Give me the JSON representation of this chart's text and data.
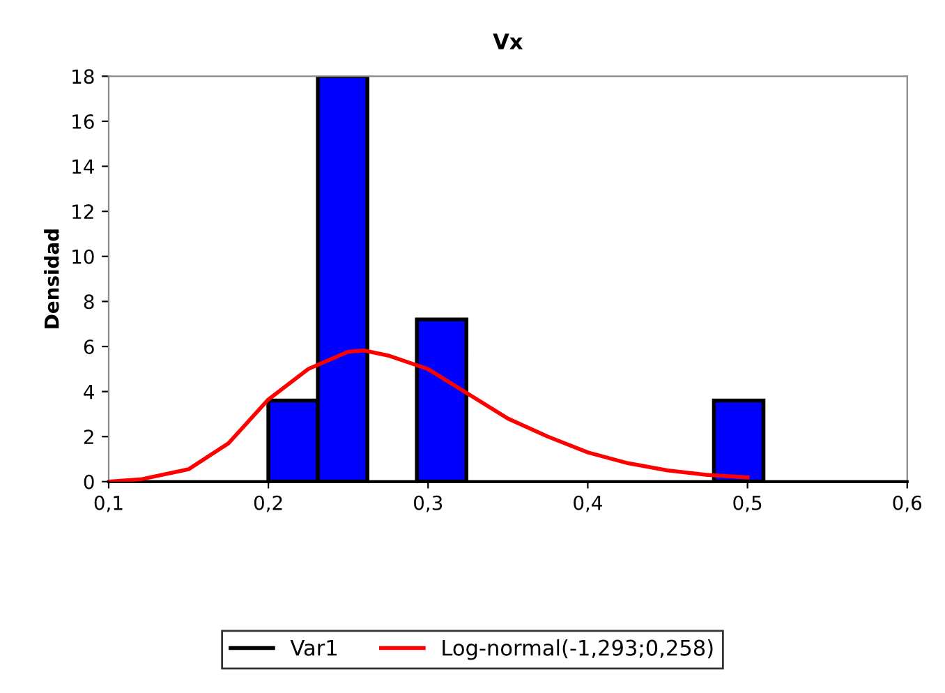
{
  "chart_data": {
    "type": "histogram",
    "title": "Vx",
    "ylabel": "Densidad",
    "xlim": [
      0.1,
      0.6
    ],
    "xticks": [
      {
        "value": 0.1,
        "label": "0,1"
      },
      {
        "value": 0.2,
        "label": "0,2"
      },
      {
        "value": 0.3,
        "label": "0,3"
      },
      {
        "value": 0.4,
        "label": "0,4"
      },
      {
        "value": 0.5,
        "label": "0,5"
      },
      {
        "value": 0.6,
        "label": "0,6"
      }
    ],
    "ylim": [
      0,
      18
    ],
    "yticks": [
      0,
      2,
      4,
      6,
      8,
      10,
      12,
      14,
      16,
      18
    ],
    "grid": false,
    "legend": "bottom",
    "series": [
      {
        "name": "Var1",
        "color": "#0000ff",
        "bins": [
          0.2,
          0.231,
          0.262,
          0.293,
          0.324,
          0.355,
          0.386,
          0.417,
          0.448,
          0.479,
          0.51
        ],
        "values": [
          3.6,
          18,
          0,
          7.2,
          0,
          0,
          0,
          0,
          0,
          3.6
        ]
      },
      {
        "name": "Log-normal(-1,293;0,258)",
        "type": "line",
        "color": "#ff0000",
        "x": [
          0.1,
          0.12,
          0.15,
          0.175,
          0.2,
          0.225,
          0.25,
          0.26,
          0.275,
          0.3,
          0.325,
          0.35,
          0.375,
          0.4,
          0.425,
          0.45,
          0.475,
          0.5
        ],
        "values": [
          0,
          0.1,
          0.55,
          1.7,
          3.65,
          5.0,
          5.77,
          5.82,
          5.6,
          5.0,
          3.9,
          2.8,
          2.0,
          1.3,
          0.82,
          0.5,
          0.3,
          0.19
        ]
      }
    ]
  }
}
